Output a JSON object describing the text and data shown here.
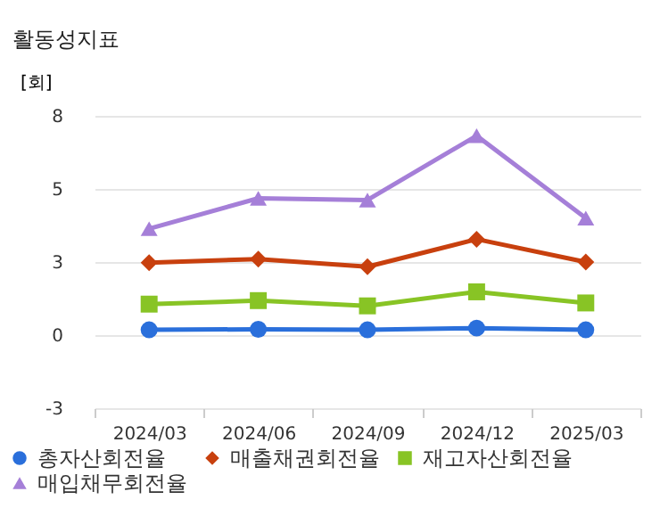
{
  "chart_data": {
    "type": "line",
    "title": "활동성지표",
    "ylabel": "[회]",
    "categories": [
      "2024/03",
      "2024/06",
      "2024/09",
      "2024/12",
      "2025/03"
    ],
    "series": [
      {
        "name": "총자산회전율",
        "color": "#2a6fdb",
        "marker": "circle",
        "values": [
          0.18,
          0.2,
          0.18,
          0.24,
          0.18
        ]
      },
      {
        "name": "매출채권회전율",
        "color": "#c8400e",
        "marker": "diamond",
        "values": [
          2.48,
          2.6,
          2.34,
          3.28,
          2.5
        ]
      },
      {
        "name": "재고자산회전율",
        "color": "#88c425",
        "marker": "square",
        "values": [
          1.06,
          1.18,
          1.0,
          1.48,
          1.1
        ]
      },
      {
        "name": "매입채무회전율",
        "color": "#a57fd8",
        "marker": "triangle",
        "values": [
          3.64,
          4.68,
          4.62,
          6.82,
          4.0
        ]
      }
    ],
    "ylim": [
      -2.5,
      7.5
    ],
    "yticks": [
      {
        "value": -2.5,
        "label": "-3"
      },
      0,
      {
        "value": 2.5,
        "label": "3"
      },
      5,
      {
        "value": 7.5,
        "label": "8"
      }
    ],
    "grid": "y",
    "legend": "bottom"
  }
}
